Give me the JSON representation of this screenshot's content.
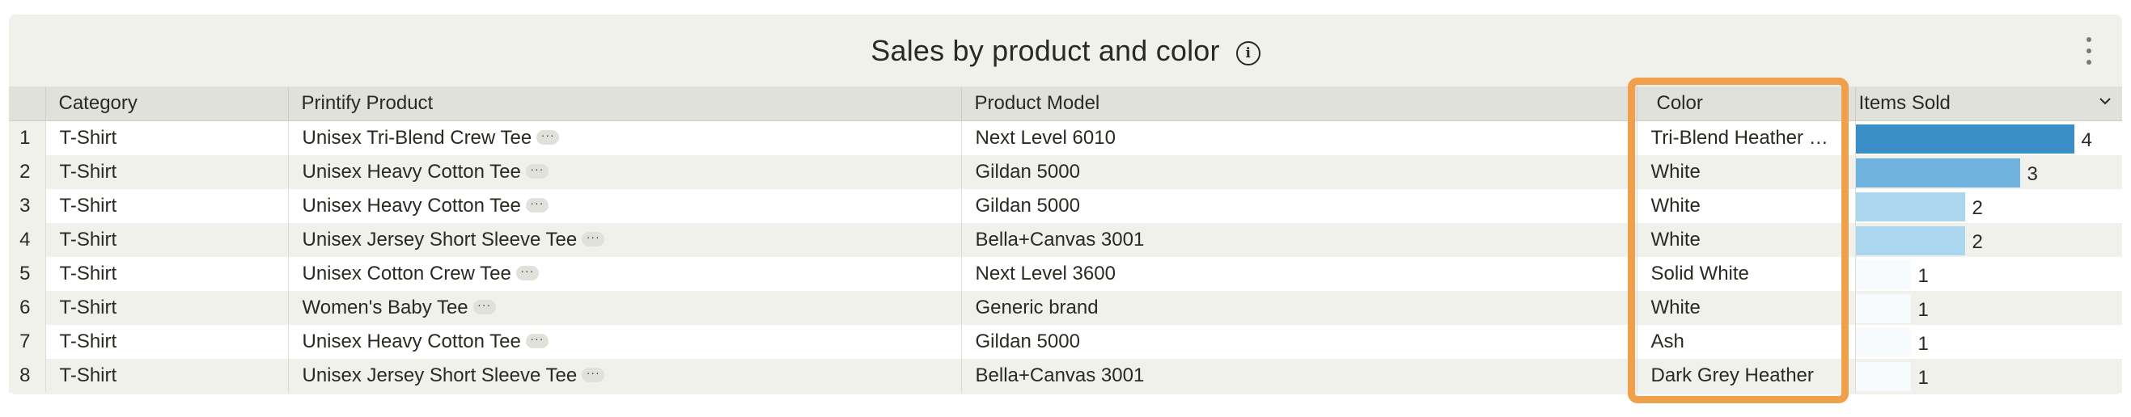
{
  "widget": {
    "title": "Sales by product and color",
    "info_icon": "info-circle-icon",
    "menu_icon": "kebab-vertical-icon"
  },
  "columns": {
    "category": "Category",
    "product": "Printify Product",
    "model": "Product Model",
    "color": "Color",
    "items_sold": "Items Sold",
    "sort_icon": "chevron-down-icon"
  },
  "rows": [
    {
      "index": "1",
      "category": "T-Shirt",
      "product": "Unisex Tri-Blend Crew Tee",
      "model": "Next Level 6010",
      "color": "Tri-Blend Heather …",
      "items_sold": 4
    },
    {
      "index": "2",
      "category": "T-Shirt",
      "product": "Unisex Heavy Cotton Tee",
      "model": "Gildan 5000",
      "color": "White",
      "items_sold": 3
    },
    {
      "index": "3",
      "category": "T-Shirt",
      "product": "Unisex Heavy Cotton Tee",
      "model": "Gildan 5000",
      "color": "White",
      "items_sold": 2
    },
    {
      "index": "4",
      "category": "T-Shirt",
      "product": "Unisex Jersey Short Sleeve Tee",
      "model": "Bella+Canvas 3001",
      "color": "White",
      "items_sold": 2
    },
    {
      "index": "5",
      "category": "T-Shirt",
      "product": "Unisex Cotton Crew Tee",
      "model": "Next Level 3600",
      "color": "Solid White",
      "items_sold": 1
    },
    {
      "index": "6",
      "category": "T-Shirt",
      "product": "Women's Baby Tee",
      "model": "Generic brand",
      "color": "White",
      "items_sold": 1
    },
    {
      "index": "7",
      "category": "T-Shirt",
      "product": "Unisex Heavy Cotton Tee",
      "model": "Gildan 5000",
      "color": "Ash",
      "items_sold": 1
    },
    {
      "index": "8",
      "category": "T-Shirt",
      "product": "Unisex Jersey Short Sleeve Tee",
      "model": "Bella+Canvas 3001",
      "color": "Dark Grey Heather",
      "items_sold": 1
    }
  ],
  "more_label": "···",
  "colors": {
    "bar_max": "#3a8ec8",
    "bar_mid": "#6fb3de",
    "bar_low": "#acd6ee",
    "bar_min": "#f8fbfd",
    "highlight": "#f0a04b"
  },
  "items_sold_max": 4
}
